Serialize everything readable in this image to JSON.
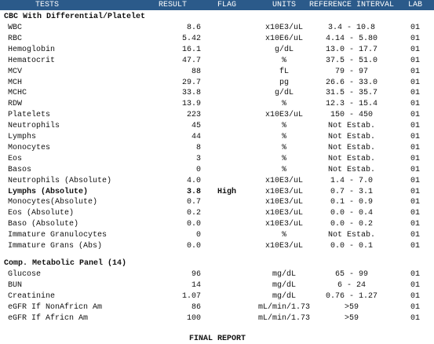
{
  "header": {
    "columns": [
      "TESTS",
      "RESULT",
      "FLAG",
      "UNITS",
      "REFERENCE INTERVAL",
      "LAB"
    ]
  },
  "sections": [
    {
      "title": "CBC With Differential/Platelet",
      "rows": [
        {
          "test": "WBC",
          "result": "8.6",
          "units": "x10E3/uL",
          "reference": "3.4 - 10.8",
          "lab": "01"
        },
        {
          "test": "RBC",
          "result": "5.42",
          "units": "x10E6/uL",
          "reference": "4.14 - 5.80",
          "lab": "01"
        },
        {
          "test": "Hemoglobin",
          "result": "16.1",
          "units": "g/dL",
          "reference": "13.0 - 17.7",
          "lab": "01"
        },
        {
          "test": "Hematocrit",
          "result": "47.7",
          "units": "%",
          "reference": "37.5 - 51.0",
          "lab": "01"
        },
        {
          "test": "MCV",
          "result": "88",
          "units": "fL",
          "reference": "79 - 97",
          "lab": "01"
        },
        {
          "test": "MCH",
          "result": "29.7",
          "units": "pg",
          "reference": "26.6 - 33.0",
          "lab": "01"
        },
        {
          "test": "MCHC",
          "result": "33.8",
          "units": "g/dL",
          "reference": "31.5 - 35.7",
          "lab": "01"
        },
        {
          "test": "RDW",
          "result": "13.9",
          "units": "%",
          "reference": "12.3 - 15.4",
          "lab": "01"
        },
        {
          "test": "Platelets",
          "result": "223",
          "units": "x10E3/uL",
          "reference": "150 - 450",
          "lab": "01"
        },
        {
          "test": "Neutrophils",
          "result": "45",
          "units": "%",
          "reference": "Not Estab.",
          "lab": "01"
        },
        {
          "test": "Lymphs",
          "result": "44",
          "units": "%",
          "reference": "Not Estab.",
          "lab": "01"
        },
        {
          "test": "Monocytes",
          "result": "8",
          "units": "%",
          "reference": "Not Estab.",
          "lab": "01"
        },
        {
          "test": "Eos",
          "result": "3",
          "units": "%",
          "reference": "Not Estab.",
          "lab": "01"
        },
        {
          "test": "Basos",
          "result": "0",
          "units": "%",
          "reference": "Not Estab.",
          "lab": "01"
        },
        {
          "test": "Neutrophils (Absolute)",
          "result": "4.0",
          "units": "x10E3/uL",
          "reference": "1.4 - 7.0",
          "lab": "01"
        },
        {
          "test": "Lymphs (Absolute)",
          "result": "3.8",
          "flag": "High",
          "units": "x10E3/uL",
          "reference": "0.7 - 3.1",
          "lab": "01"
        },
        {
          "test": "Monocytes(Absolute)",
          "result": "0.7",
          "units": "x10E3/uL",
          "reference": "0.1 - 0.9",
          "lab": "01"
        },
        {
          "test": "Eos (Absolute)",
          "result": "0.2",
          "units": "x10E3/uL",
          "reference": "0.0 - 0.4",
          "lab": "01"
        },
        {
          "test": "Baso (Absolute)",
          "result": "0.0",
          "units": "x10E3/uL",
          "reference": "0.0 - 0.2",
          "lab": "01"
        },
        {
          "test": "Immature Granulocytes",
          "result": "0",
          "units": "%",
          "reference": "Not Estab.",
          "lab": "01"
        },
        {
          "test": "Immature Grans (Abs)",
          "result": "0.0",
          "units": "x10E3/uL",
          "reference": "0.0 - 0.1",
          "lab": "01"
        }
      ]
    },
    {
      "title": "Comp. Metabolic Panel (14)",
      "rows": [
        {
          "test": "Glucose",
          "result": "96",
          "units": "mg/dL",
          "reference": "65 - 99",
          "lab": "01"
        },
        {
          "test": "BUN",
          "result": "14",
          "units": "mg/dL",
          "reference": "6 - 24",
          "lab": "01"
        },
        {
          "test": "Creatinine",
          "result": "1.07",
          "units": "mg/dL",
          "reference": "0.76 - 1.27",
          "lab": "01"
        },
        {
          "test": "eGFR If NonAfricn Am",
          "result": "86",
          "units": "mL/min/1.73",
          "reference": ">59",
          "lab": "01"
        },
        {
          "test": "eGFR If Africn Am",
          "result": "100",
          "units": "mL/min/1.73",
          "reference": ">59",
          "lab": "01"
        }
      ]
    }
  ],
  "footer": {
    "text": "FINAL REPORT"
  }
}
